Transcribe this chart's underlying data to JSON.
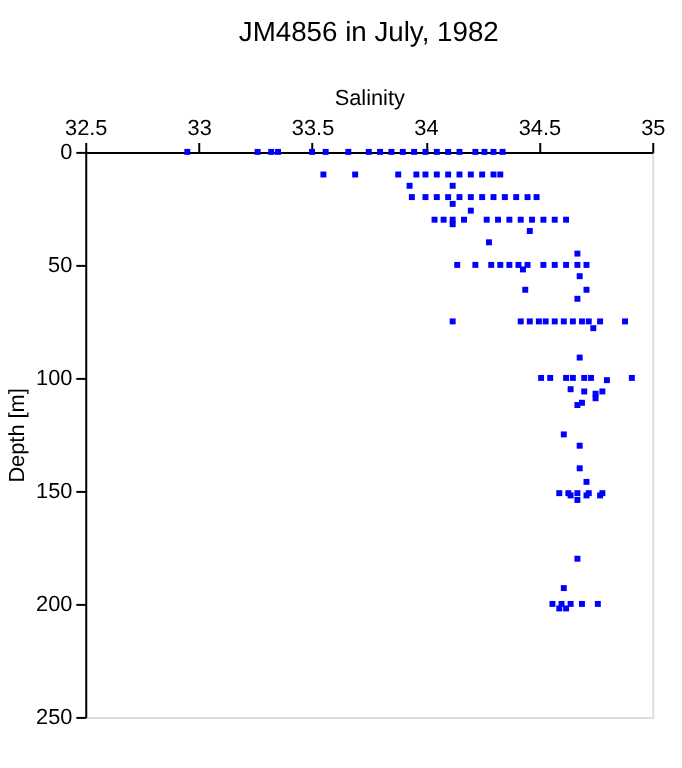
{
  "chart_data": {
    "type": "scatter",
    "title": "JM4856 in July, 1982",
    "xlabel": "Salinity",
    "ylabel": "Depth [m]",
    "x": [
      32.95,
      33.26,
      33.32,
      33.35,
      33.5,
      33.56,
      33.66,
      33.75,
      33.8,
      33.85,
      33.9,
      33.95,
      34.0,
      34.05,
      34.1,
      34.15,
      34.22,
      34.26,
      34.3,
      34.34,
      33.55,
      33.69,
      33.88,
      33.96,
      34.0,
      34.05,
      34.1,
      34.15,
      34.2,
      34.25,
      34.3,
      34.33,
      33.93,
      34.12,
      33.94,
      34.0,
      34.05,
      34.1,
      34.15,
      34.2,
      34.25,
      34.3,
      34.35,
      34.4,
      34.45,
      34.49,
      34.12,
      34.2,
      34.04,
      34.08,
      34.12,
      34.17,
      34.27,
      34.32,
      34.37,
      34.42,
      34.47,
      34.52,
      34.57,
      34.62,
      34.12,
      34.46,
      34.28,
      34.67,
      34.14,
      34.22,
      34.29,
      34.33,
      34.37,
      34.41,
      34.45,
      34.52,
      34.57,
      34.62,
      34.67,
      34.71,
      34.43,
      34.68,
      34.44,
      34.71,
      34.67,
      34.12,
      34.42,
      34.46,
      34.5,
      34.53,
      34.57,
      34.61,
      34.65,
      34.69,
      34.72,
      34.77,
      34.88,
      34.74,
      34.68,
      34.51,
      34.55,
      34.62,
      34.65,
      34.7,
      34.73,
      34.8,
      34.91,
      34.64,
      34.7,
      34.75,
      34.78,
      34.75,
      34.69,
      34.67,
      34.61,
      34.68,
      34.68,
      34.71,
      34.59,
      34.63,
      34.67,
      34.72,
      34.78,
      34.64,
      34.71,
      34.77,
      34.67,
      34.67,
      34.61,
      34.56,
      34.6,
      34.64,
      34.69,
      34.76,
      34.59,
      34.62
    ],
    "values": [
      0,
      0,
      0,
      0,
      0,
      0,
      0,
      0,
      0,
      0,
      0,
      0,
      0,
      0,
      0,
      0,
      0,
      0,
      0,
      0,
      10,
      10,
      10,
      10,
      10,
      10,
      10,
      10,
      10,
      10,
      10,
      10,
      15,
      15,
      20,
      20,
      20,
      20,
      20,
      20,
      20,
      20,
      20,
      20,
      20,
      20,
      23,
      26,
      30,
      30,
      30,
      30,
      30,
      30,
      30,
      30,
      30,
      30,
      30,
      30,
      32,
      35,
      40,
      45,
      50,
      50,
      50,
      50,
      50,
      50,
      50,
      50,
      50,
      50,
      50,
      50,
      52,
      55,
      61,
      61,
      65,
      75,
      75,
      75,
      75,
      75,
      75,
      75,
      75,
      75,
      75,
      75,
      75,
      78,
      91,
      100,
      100,
      100,
      100,
      100,
      100,
      101,
      100,
      105,
      106,
      107,
      106,
      109,
      111,
      112,
      125,
      130,
      140,
      146,
      151,
      151,
      151,
      151,
      151,
      152,
      152,
      152,
      154,
      180,
      193,
      200,
      200,
      200,
      200,
      200,
      202,
      202
    ],
    "color": "#0000ff",
    "marker": "square",
    "xlim": [
      32.5,
      35
    ],
    "xticks": [
      32.5,
      33,
      33.5,
      34,
      34.5,
      35
    ],
    "ylim": [
      250,
      0
    ],
    "yticks": [
      0,
      50,
      100,
      150,
      200,
      250
    ],
    "grid": false
  }
}
